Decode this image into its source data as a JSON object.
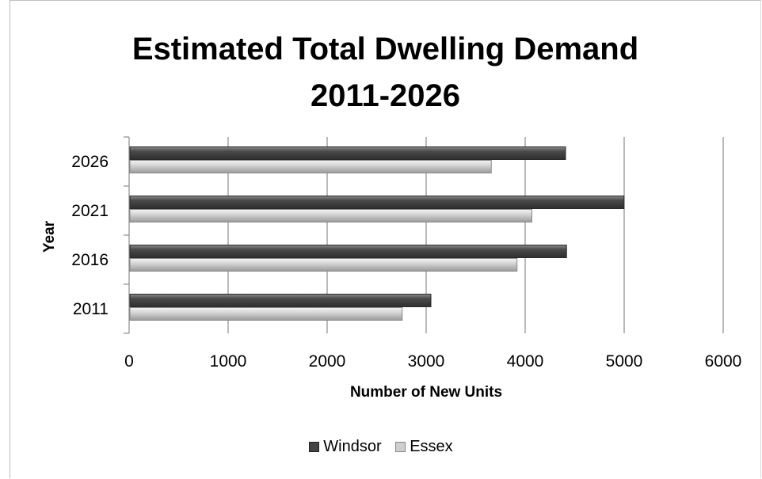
{
  "chart_data": {
    "type": "bar",
    "orientation": "horizontal",
    "title": "Estimated Total Dwelling Demand",
    "subtitle": "2011-2026",
    "xlabel": "Number of New Units",
    "ylabel": "Year",
    "categories": [
      "2011",
      "2016",
      "2021",
      "2026"
    ],
    "xlim": [
      0,
      6000
    ],
    "xticks": [
      "0",
      "1000",
      "2000",
      "3000",
      "4000",
      "5000",
      "6000"
    ],
    "series": [
      {
        "name": "Windsor",
        "values": [
          3040,
          4410,
          4990,
          4400
        ],
        "color": "#555555"
      },
      {
        "name": "Essex",
        "values": [
          2750,
          3910,
          4060,
          3650
        ],
        "color": "#c8c8c8"
      }
    ],
    "grid": "vertical",
    "legend_position": "bottom"
  }
}
